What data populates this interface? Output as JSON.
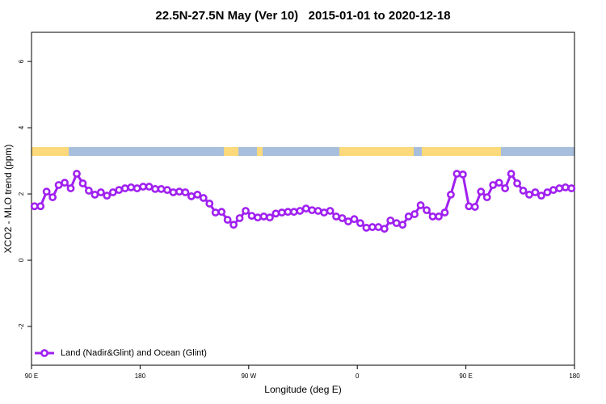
{
  "chart_data": {
    "type": "line",
    "title": "22.5N-27.5N May (Ver 10)   2015-01-01 to 2020-12-18",
    "x_label": "Longitude (deg E)",
    "y_label": "XCO2 - MLO trend (ppm)",
    "x": [
      92.5,
      97.5,
      102.5,
      107.5,
      112.5,
      117.5,
      122.5,
      127.5,
      132.5,
      137.5,
      142.5,
      147.5,
      152.5,
      157.5,
      162.5,
      167.5,
      172.5,
      177.5,
      182.5,
      187.5,
      192.5,
      197.5,
      202.5,
      207.5,
      212.5,
      217.5,
      222.5,
      227.5,
      232.5,
      237.5,
      242.5,
      247.5,
      252.5,
      257.5,
      262.5,
      267.5,
      272.5,
      277.5,
      282.5,
      287.5,
      292.5,
      297.5,
      302.5,
      307.5,
      312.5,
      317.5,
      322.5,
      327.5,
      332.5,
      337.5,
      342.5,
      347.5,
      352.5,
      357.5,
      362.5,
      367.5,
      372.5,
      377.5,
      382.5,
      387.5,
      392.5,
      397.5,
      402.5,
      407.5,
      412.5,
      417.5,
      422.5,
      427.5,
      432.5,
      437.5,
      442.5,
      447.5,
      452.5,
      457.5,
      462.5,
      467.5,
      472.5,
      477.5,
      482.5,
      487.5,
      492.5,
      497.5,
      502.5,
      507.5,
      512.5,
      517.5,
      522.5,
      527.5,
      532.5,
      537.5
    ],
    "series": [
      {
        "name": "Land (Nadir&Glint) and Ocean (Glint)",
        "color": "#a020f0",
        "values": [
          1.63,
          1.63,
          2.07,
          1.9,
          2.27,
          2.34,
          2.17,
          2.61,
          2.32,
          2.1,
          1.98,
          2.05,
          1.95,
          2.05,
          2.12,
          2.17,
          2.2,
          2.17,
          2.22,
          2.22,
          2.15,
          2.15,
          2.12,
          2.05,
          2.07,
          2.05,
          1.93,
          1.98,
          1.88,
          1.71,
          1.44,
          1.46,
          1.22,
          1.07,
          1.27,
          1.49,
          1.34,
          1.29,
          1.32,
          1.29,
          1.41,
          1.44,
          1.46,
          1.46,
          1.49,
          1.56,
          1.51,
          1.49,
          1.44,
          1.49,
          1.32,
          1.27,
          1.17,
          1.24,
          1.12,
          0.98,
          1.0,
          1.0,
          0.95,
          1.2,
          1.12,
          1.07,
          1.32,
          1.39,
          1.66,
          1.51,
          1.32,
          1.32,
          1.44,
          1.98,
          2.61,
          2.59,
          1.63,
          1.61,
          2.07,
          1.9,
          2.27,
          2.34,
          2.17,
          2.61,
          2.32,
          2.1,
          1.98,
          2.05,
          1.95,
          2.05,
          2.12,
          2.17,
          2.2,
          2.17
        ]
      }
    ],
    "xlim": [
      90,
      540
    ],
    "xticks": [
      {
        "value": 90,
        "label": "90 E"
      },
      {
        "value": 180,
        "label": "180"
      },
      {
        "value": 270,
        "label": "90 W"
      },
      {
        "value": 360,
        "label": "0"
      },
      {
        "value": 450,
        "label": "90 E"
      },
      {
        "value": 540,
        "label": "180"
      }
    ],
    "ylim": [
      -3.17,
      6.88
    ],
    "yticks": [
      -2,
      0,
      2,
      4,
      6
    ],
    "legend": "bottomleft"
  }
}
